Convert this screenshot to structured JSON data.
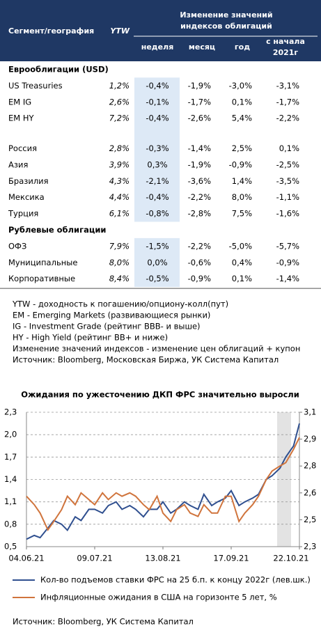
{
  "table": {
    "header": {
      "segment": "Сегмент/география",
      "ytw": "YTW",
      "group": [
        "Изменение значений",
        "индексов облигаций"
      ],
      "cols": [
        "неделя",
        "месяц",
        "год",
        [
          "с начала",
          "2021г"
        ]
      ]
    },
    "sections": [
      {
        "title": "Еврооблигации (USD)",
        "rows": [
          [
            "US Treasuries",
            "1,2%",
            "-0,4%",
            "-1,9%",
            "-3,0%",
            "-3,1%"
          ],
          [
            "EM IG",
            "2,6%",
            "-0,1%",
            "-1,7%",
            "0,1%",
            "-1,7%"
          ],
          [
            "EM HY",
            "7,2%",
            "-0,4%",
            "-2,6%",
            "5,4%",
            "-2,2%"
          ]
        ]
      },
      {
        "rows": [
          [
            "Россия",
            "2,8%",
            "-0,3%",
            "-1,4%",
            "2,5%",
            "0,1%"
          ],
          [
            "Азия",
            "3,9%",
            "0,3%",
            "-1,9%",
            "-0,9%",
            "-2,5%"
          ],
          [
            "Бразилия",
            "4,3%",
            "-2,1%",
            "-3,6%",
            "1,4%",
            "-3,5%"
          ],
          [
            "Мексика",
            "4,4%",
            "-0,4%",
            "-2,2%",
            "8,0%",
            "-1,1%"
          ],
          [
            "Турция",
            "6,1%",
            "-0,8%",
            "-2,8%",
            "7,5%",
            "-1,6%"
          ]
        ]
      },
      {
        "title": "Рублевые облигации",
        "rows": [
          [
            "ОФЗ",
            "7,9%",
            "-1,5%",
            "-2,2%",
            "-5,0%",
            "-5,7%"
          ],
          [
            "Муниципальные",
            "8,0%",
            "0,0%",
            "-0,6%",
            "0,4%",
            "-0,9%"
          ],
          [
            "Корпоративные",
            "8,4%",
            "-0,5%",
            "-0,9%",
            "0,1%",
            "-1,4%"
          ]
        ]
      }
    ]
  },
  "notes": [
    "YTW - доходность к погашению/опциону-колл(пут)",
    "EM - Emerging Markets (развивающиеся рынки)",
    "IG - Investment Grade (рейтинг BBB- и выше)",
    "HY - High Yield (рейтинг BB+ и ниже)",
    "Изменение значений индексов - изменение цен облигаций + купон",
    "Источник: Bloomberg, Московская Биржа, УК Система Капитал"
  ],
  "chart_data": {
    "type": "line",
    "title": "Ожидания по ужесточению ДКП ФРС значительно выросли",
    "x": [
      "04.06.21",
      "08.06.21",
      "11.06.21",
      "15.06.21",
      "18.06.21",
      "22.06.21",
      "25.06.21",
      "29.06.21",
      "02.07.21",
      "06.07.21",
      "09.07.21",
      "13.07.21",
      "16.07.21",
      "20.07.21",
      "23.07.21",
      "27.07.21",
      "30.07.21",
      "03.08.21",
      "06.08.21",
      "10.08.21",
      "13.08.21",
      "17.08.21",
      "20.08.21",
      "24.08.21",
      "27.08.21",
      "31.08.21",
      "03.09.21",
      "07.09.21",
      "10.09.21",
      "14.09.21",
      "17.09.21",
      "21.09.21",
      "24.09.21",
      "28.09.21",
      "01.10.21",
      "05.10.21",
      "08.10.21",
      "12.10.21",
      "15.10.21",
      "19.10.21",
      "22.10.21"
    ],
    "xticks": [
      "04.06.21",
      "09.07.21",
      "13.08.21",
      "17.09.21",
      "22.10.21"
    ],
    "series": [
      {
        "name": "Кол-во подъемов ставки ФРС на 25 б.п. к концу 2022г (лев.шк.)",
        "color": "#2f4f8f",
        "axis": "y",
        "values": [
          0.6,
          0.65,
          0.62,
          0.75,
          0.85,
          0.8,
          0.72,
          0.9,
          0.85,
          1.0,
          1.0,
          0.95,
          1.05,
          1.1,
          1.0,
          1.05,
          1.0,
          0.9,
          1.0,
          1.0,
          1.1,
          0.95,
          1.0,
          1.1,
          1.05,
          1.0,
          1.2,
          1.05,
          1.1,
          1.15,
          1.25,
          1.05,
          1.1,
          1.15,
          1.2,
          1.4,
          1.45,
          1.55,
          1.7,
          1.85,
          2.15
        ]
      },
      {
        "name": "Инфляционные ожидания в США на горизонте 5 лет, %",
        "color": "#d0743c",
        "axis": "y2",
        "values": [
          2.6,
          2.55,
          2.5,
          2.4,
          2.45,
          2.52,
          2.6,
          2.55,
          2.62,
          2.58,
          2.55,
          2.62,
          2.58,
          2.62,
          2.6,
          2.62,
          2.6,
          2.55,
          2.52,
          2.6,
          2.5,
          2.45,
          2.52,
          2.55,
          2.5,
          2.48,
          2.55,
          2.5,
          2.5,
          2.6,
          2.6,
          2.45,
          2.5,
          2.55,
          2.6,
          2.7,
          2.75,
          2.78,
          2.8,
          2.88,
          2.95
        ]
      }
    ],
    "ylim": [
      0.5,
      2.3
    ],
    "yticks": [
      {
        "value": 0.5,
        "label": "0,5"
      },
      {
        "value": 0.8,
        "label": "0,8"
      },
      {
        "value": 1.1,
        "label": "1,1"
      },
      {
        "value": 1.4,
        "label": "1,4"
      },
      {
        "value": 1.7,
        "label": "1,7"
      },
      {
        "value": 2.0,
        "label": "2,0"
      },
      {
        "value": 2.3,
        "label": "2,3"
      }
    ],
    "y2lim": [
      2.3,
      3.1
    ],
    "y2ticks": [
      {
        "value": 2.3,
        "label": "2,3"
      },
      {
        "value": 2.46,
        "label": "2,5"
      },
      {
        "value": 2.62,
        "label": "2,6"
      },
      {
        "value": 2.78,
        "label": "2,8"
      },
      {
        "value": 2.94,
        "label": "2,9"
      },
      {
        "value": 3.1,
        "label": "3,1"
      }
    ],
    "grid": true,
    "source": "Источник: Bloomberg, УК Система Капитал"
  }
}
